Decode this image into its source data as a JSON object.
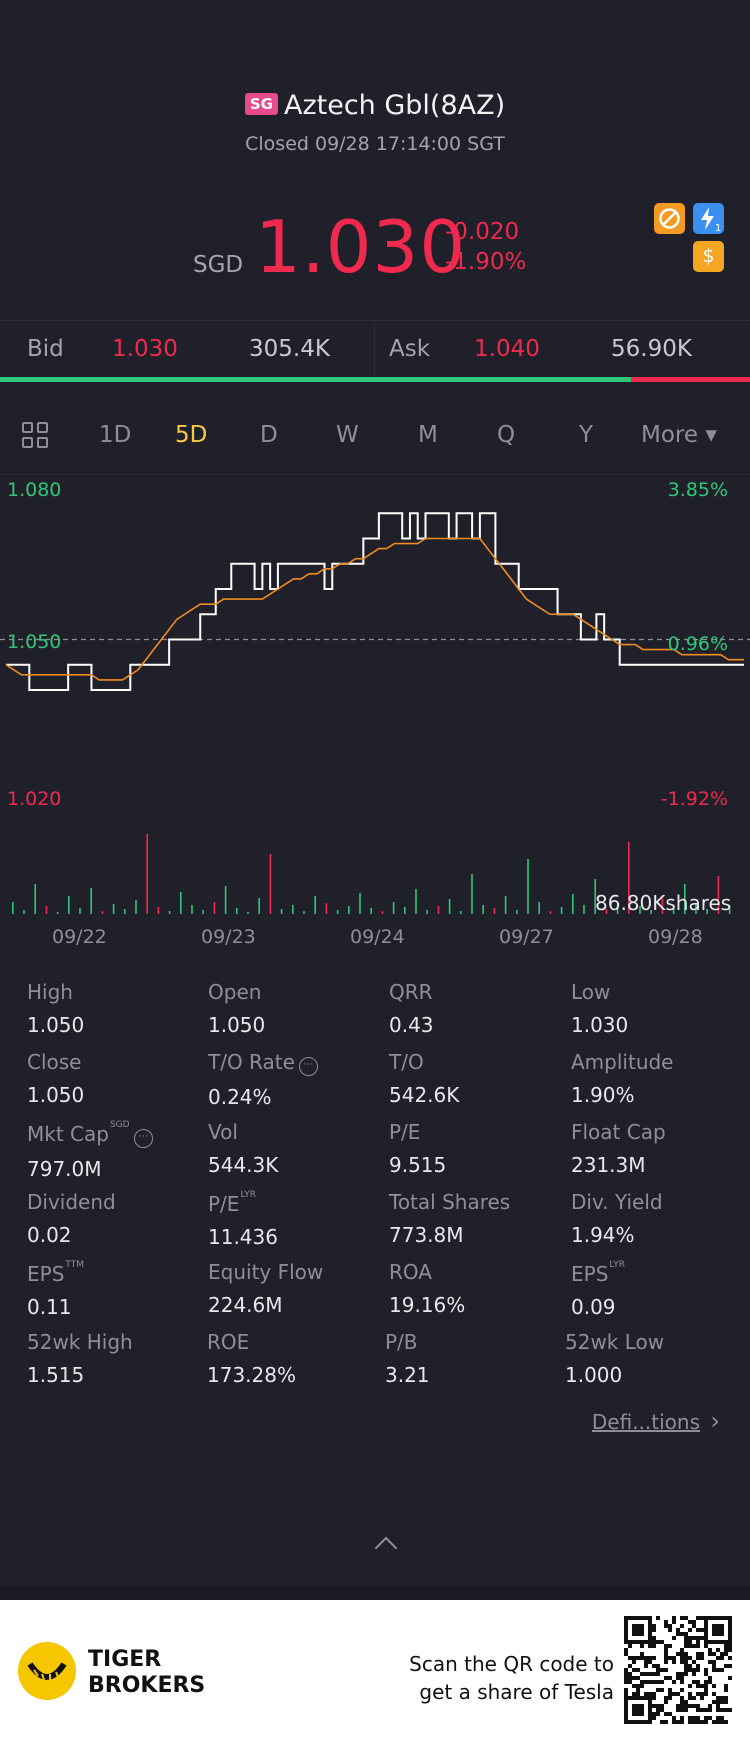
{
  "header": {
    "market_badge": "SG",
    "name": "Aztech Gbl(8AZ)",
    "status": "Closed 09/28 17:14:00 SGT",
    "currency": "SGD",
    "price": "1.030",
    "change": "-0.020",
    "change_pct": "-1.90%",
    "icons": [
      "no-short-icon",
      "lightning-1-icon",
      "dollar-icon"
    ]
  },
  "bidask": {
    "bid_label": "Bid",
    "bid_price": "1.030",
    "bid_size": "305.4K",
    "ask_label": "Ask",
    "ask_price": "1.040",
    "ask_size": "56.90K",
    "bid_ratio": 0.84
  },
  "periods": {
    "items": [
      "1D",
      "5D",
      "D",
      "W",
      "M",
      "Q",
      "Y"
    ],
    "active": "5D",
    "more": "More ▾"
  },
  "chart_data": {
    "type": "line",
    "ylim": [
      1.02,
      1.08
    ],
    "prev_close": 1.05,
    "y_left_labels": [
      "1.080",
      "1.050",
      "1.020"
    ],
    "y_right_labels": [
      "3.85%",
      "0.96%",
      "-1.92%"
    ],
    "x_labels": [
      "09/22",
      "09/23",
      "09/24",
      "09/27",
      "09/28"
    ],
    "volume_label": "86.80Kshares",
    "series": [
      {
        "values": [
          1.045,
          1.045,
          1.045,
          1.04,
          1.04,
          1.04,
          1.04,
          1.04,
          1.045,
          1.045,
          1.045,
          1.04,
          1.04,
          1.04,
          1.04,
          1.04,
          1.045,
          1.045,
          1.045,
          1.045,
          1.045,
          1.05,
          1.05,
          1.05,
          1.05,
          1.055,
          1.055,
          1.06,
          1.06,
          1.065,
          1.065,
          1.065,
          1.06,
          1.065,
          1.06,
          1.065,
          1.065,
          1.065,
          1.065,
          1.065,
          1.065,
          1.06,
          1.065,
          1.065,
          1.065,
          1.065,
          1.07,
          1.07,
          1.075,
          1.075,
          1.075,
          1.07,
          1.075,
          1.07,
          1.075,
          1.075,
          1.075,
          1.07,
          1.075,
          1.075,
          1.07,
          1.075,
          1.075,
          1.065,
          1.065,
          1.065,
          1.06,
          1.06,
          1.06,
          1.06,
          1.06,
          1.055,
          1.055,
          1.055,
          1.05,
          1.05,
          1.055,
          1.05,
          1.05,
          1.045,
          1.045,
          1.045,
          1.045,
          1.045,
          1.045,
          1.045,
          1.045,
          1.045,
          1.045,
          1.045,
          1.045,
          1.045,
          1.045,
          1.045,
          1.045,
          1.045
        ]
      },
      {
        "values": [
          1.045,
          1.044,
          1.043,
          1.043,
          1.043,
          1.043,
          1.043,
          1.043,
          1.043,
          1.043,
          1.043,
          1.043,
          1.042,
          1.042,
          1.042,
          1.042,
          1.043,
          1.044,
          1.046,
          1.048,
          1.05,
          1.052,
          1.054,
          1.055,
          1.056,
          1.057,
          1.057,
          1.057,
          1.058,
          1.058,
          1.058,
          1.058,
          1.058,
          1.058,
          1.059,
          1.06,
          1.061,
          1.062,
          1.062,
          1.063,
          1.063,
          1.064,
          1.064,
          1.065,
          1.065,
          1.066,
          1.066,
          1.067,
          1.068,
          1.068,
          1.069,
          1.069,
          1.069,
          1.069,
          1.07,
          1.07,
          1.07,
          1.07,
          1.07,
          1.07,
          1.07,
          1.07,
          1.068,
          1.066,
          1.064,
          1.062,
          1.06,
          1.058,
          1.057,
          1.056,
          1.055,
          1.055,
          1.055,
          1.055,
          1.054,
          1.053,
          1.052,
          1.051,
          1.05,
          1.049,
          1.049,
          1.049,
          1.048,
          1.048,
          1.048,
          1.048,
          1.048,
          1.047,
          1.047,
          1.047,
          1.047,
          1.047,
          1.047,
          1.046,
          1.046,
          1.046
        ]
      }
    ]
  },
  "stats": {
    "c1": [
      {
        "k": "High",
        "v": "1.050"
      },
      {
        "k": "Close",
        "v": "1.050"
      },
      {
        "k": "Mkt Cap",
        "v": "797.0M",
        "sup": "SGD"
      },
      {
        "k": "Dividend",
        "v": "0.02"
      },
      {
        "k": "EPS",
        "v": "0.11",
        "sup": "TTM"
      },
      {
        "k": "52wk High",
        "v": "1.515"
      }
    ],
    "c2": [
      {
        "k": "Open",
        "v": "1.050"
      },
      {
        "k": "T/O Rate",
        "v": "0.24%"
      },
      {
        "k": "Vol",
        "v": "544.3K"
      },
      {
        "k": "P/E",
        "v": "11.436",
        "sup": "LYR"
      },
      {
        "k": "Equity Flow",
        "v": "224.6M"
      },
      {
        "k": "ROE",
        "v": "173.28%"
      }
    ],
    "c3": [
      {
        "k": "QRR",
        "v": "0.43"
      },
      {
        "k": "T/O",
        "v": "542.6K"
      },
      {
        "k": "P/E",
        "v": "9.515"
      },
      {
        "k": "Total Shares",
        "v": "773.8M"
      },
      {
        "k": "ROA",
        "v": "19.16%"
      },
      {
        "k": "P/B",
        "v": "3.21"
      }
    ],
    "c4": [
      {
        "k": "Low",
        "v": "1.030"
      },
      {
        "k": "Amplitude",
        "v": "1.90%"
      },
      {
        "k": "Float Cap",
        "v": "231.3M"
      },
      {
        "k": "Div. Yield",
        "v": "1.94%"
      },
      {
        "k": "EPS",
        "v": "0.09",
        "sup": "LYR"
      },
      {
        "k": "52wk Low",
        "v": "1.000"
      }
    ],
    "definitions": "Defi...tions",
    "info_symbol": "⋯"
  },
  "footer": {
    "brand_line1": "TIGER",
    "brand_line2": "BROKERS",
    "promo_line1": "Scan the QR code to",
    "promo_line2": "get a share of Tesla"
  },
  "colors": {
    "up": "#2ec77a",
    "down": "#f0294f",
    "accent": "#f6c844",
    "avg_line": "#f08c1e"
  }
}
